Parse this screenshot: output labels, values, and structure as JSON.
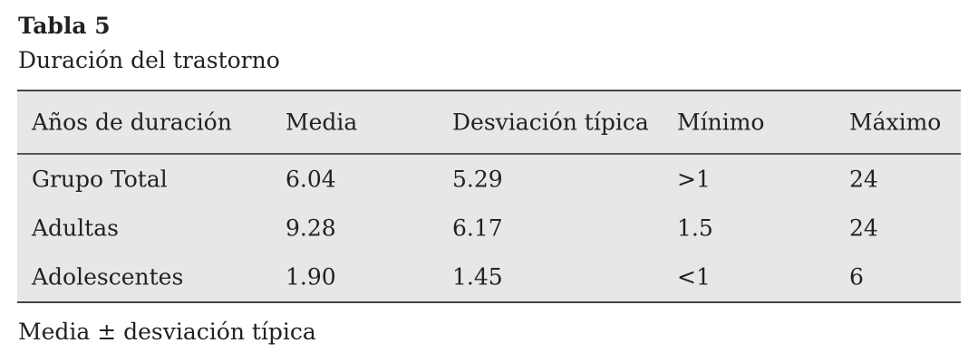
{
  "caption": {
    "label": "Tabla 5",
    "title": "Duración del trastorno"
  },
  "table": {
    "header": [
      "Años de duración",
      "Media",
      "Desviación típica",
      "Mínimo",
      "Máximo"
    ],
    "rows": [
      [
        "Grupo Total",
        "6.04",
        "5.29",
        ">1",
        "24"
      ],
      [
        "Adultas",
        "9.28",
        "6.17",
        "1.5",
        "24"
      ],
      [
        "Adolescentes",
        "1.90",
        "1.45",
        "<1",
        "6"
      ]
    ]
  },
  "note": "Media ± desviación típica"
}
